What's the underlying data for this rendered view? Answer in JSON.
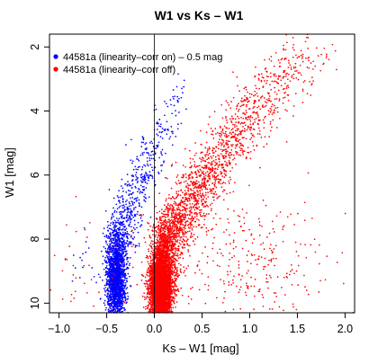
{
  "chart_data": {
    "type": "scatter",
    "title": "W1 vs Ks – W1",
    "xlabel": "Ks – W1 [mag]",
    "ylabel": "W1 [mag]",
    "xlim": [
      -1.1,
      2.1
    ],
    "ylim": [
      10.3,
      1.6
    ],
    "y_inverted": true,
    "x_ticks": [
      -1.0,
      -0.5,
      0.0,
      0.5,
      1.0,
      1.5,
      2.0
    ],
    "x_tick_labels": [
      "−1.0",
      "−0.5",
      "0.0",
      "0.5",
      "1.0",
      "1.5",
      "2.0"
    ],
    "y_ticks": [
      2,
      4,
      6,
      8,
      10
    ],
    "y_tick_labels": [
      "2",
      "4",
      "6",
      "8",
      "10"
    ],
    "vertical_line_x": 0.0,
    "grid": false,
    "legend_position": "top-left",
    "series": [
      {
        "name": "44581a (linearity–corr on) – 0.5 mag",
        "color": "#0000ff",
        "cloud": [
          {
            "x": -0.4,
            "y": 9.3,
            "sx": 0.05,
            "sy": 0.7,
            "n": 1800
          },
          {
            "x": -0.37,
            "y": 8.1,
            "sx": 0.07,
            "sy": 0.45,
            "n": 260
          },
          {
            "x": -0.28,
            "y": 7.1,
            "sx": 0.08,
            "sy": 0.45,
            "n": 160
          },
          {
            "x": -0.14,
            "y": 6.2,
            "sx": 0.08,
            "sy": 0.45,
            "n": 110
          },
          {
            "x": -0.02,
            "y": 5.3,
            "sx": 0.08,
            "sy": 0.4,
            "n": 80
          },
          {
            "x": 0.12,
            "y": 4.4,
            "sx": 0.08,
            "sy": 0.35,
            "n": 45
          },
          {
            "x": 0.22,
            "y": 3.6,
            "sx": 0.07,
            "sy": 0.3,
            "n": 20
          },
          {
            "x": -0.62,
            "y": 8.8,
            "sx": 0.18,
            "sy": 0.8,
            "n": 25
          }
        ]
      },
      {
        "name": "44581a (linearity–corr off)",
        "color": "#ff0000",
        "cloud": [
          {
            "x": 0.07,
            "y": 9.5,
            "sx": 0.06,
            "sy": 0.55,
            "n": 4500
          },
          {
            "x": 0.12,
            "y": 8.2,
            "sx": 0.08,
            "sy": 0.45,
            "n": 650
          },
          {
            "x": 0.25,
            "y": 7.4,
            "sx": 0.1,
            "sy": 0.4,
            "n": 380
          },
          {
            "x": 0.42,
            "y": 6.6,
            "sx": 0.11,
            "sy": 0.4,
            "n": 300
          },
          {
            "x": 0.6,
            "y": 5.8,
            "sx": 0.12,
            "sy": 0.4,
            "n": 250
          },
          {
            "x": 0.8,
            "y": 5.0,
            "sx": 0.14,
            "sy": 0.4,
            "n": 200
          },
          {
            "x": 1.0,
            "y": 4.2,
            "sx": 0.15,
            "sy": 0.4,
            "n": 160
          },
          {
            "x": 1.22,
            "y": 3.4,
            "sx": 0.16,
            "sy": 0.4,
            "n": 120
          },
          {
            "x": 1.42,
            "y": 2.7,
            "sx": 0.16,
            "sy": 0.35,
            "n": 80
          },
          {
            "x": 1.62,
            "y": 2.2,
            "sx": 0.14,
            "sy": 0.3,
            "n": 40
          },
          {
            "x": 0.9,
            "y": 8.7,
            "sx": 0.45,
            "sy": 1.1,
            "n": 320
          },
          {
            "x": -0.7,
            "y": 9.2,
            "sx": 0.25,
            "sy": 0.9,
            "n": 45
          }
        ]
      }
    ]
  }
}
